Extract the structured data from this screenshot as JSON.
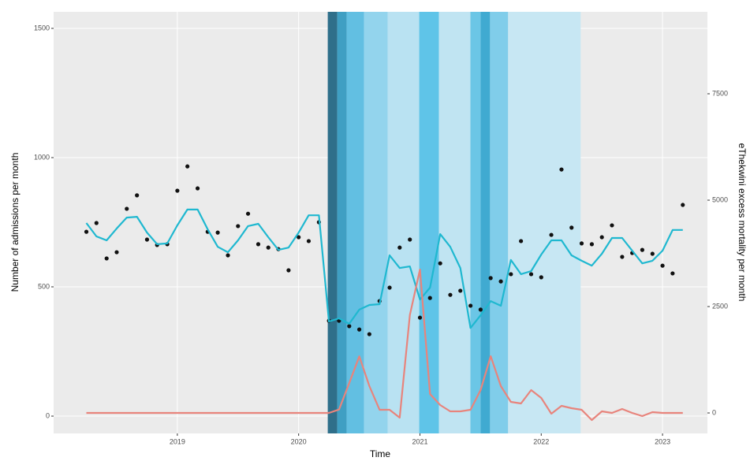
{
  "chart_data": {
    "type": "line",
    "x_label": "Time",
    "y_label": "Number of admissions per month",
    "y2_label": "eThekwini excess mortality per month",
    "xlim": [
      2017.98,
      2023.37
    ],
    "xticks": [
      2019,
      2020,
      2021,
      2022,
      2023
    ],
    "ylim": [
      -67,
      1564
    ],
    "yticks": [
      0,
      500,
      1000,
      1500
    ],
    "y2lim": [
      -481,
      9426
    ],
    "y2ticks": [
      0,
      2500,
      5000,
      7500
    ],
    "grid": true,
    "background": "#ebebeb",
    "bands": [
      {
        "xmin": 2020.24,
        "xmax": 2020.318,
        "color": "#2f6f8a"
      },
      {
        "xmin": 2020.318,
        "xmax": 2020.396,
        "color": "#3f9fc3"
      },
      {
        "xmin": 2020.396,
        "xmax": 2020.539,
        "color": "#62bfe2"
      },
      {
        "xmin": 2020.539,
        "xmax": 2020.734,
        "color": "#93d4ed"
      },
      {
        "xmin": 2020.734,
        "xmax": 2020.994,
        "color": "#b9e2f2"
      },
      {
        "xmin": 2020.994,
        "xmax": 2021.156,
        "color": "#5fc4e8"
      },
      {
        "xmin": 2021.156,
        "xmax": 2021.416,
        "color": "#c0e4f2"
      },
      {
        "xmin": 2021.416,
        "xmax": 2021.5,
        "color": "#6bc6e6"
      },
      {
        "xmin": 2021.5,
        "xmax": 2021.578,
        "color": "#40aad1"
      },
      {
        "xmin": 2021.578,
        "xmax": 2021.727,
        "color": "#80cdea"
      },
      {
        "xmin": 2021.727,
        "xmax": 2022.325,
        "color": "#c7e7f3"
      }
    ],
    "x": [
      2018.25,
      2018.333,
      2018.417,
      2018.5,
      2018.583,
      2018.667,
      2018.75,
      2018.833,
      2018.917,
      2019.0,
      2019.083,
      2019.167,
      2019.25,
      2019.333,
      2019.417,
      2019.5,
      2019.583,
      2019.667,
      2019.75,
      2019.833,
      2019.917,
      2020.0,
      2020.083,
      2020.167,
      2020.25,
      2020.333,
      2020.417,
      2020.5,
      2020.583,
      2020.667,
      2020.75,
      2020.833,
      2020.917,
      2021.0,
      2021.083,
      2021.167,
      2021.25,
      2021.333,
      2021.417,
      2021.5,
      2021.583,
      2021.667,
      2021.75,
      2021.833,
      2021.917,
      2022.0,
      2022.083,
      2022.167,
      2022.25,
      2022.333,
      2022.417,
      2022.5,
      2022.583,
      2022.667,
      2022.75,
      2022.833,
      2022.917,
      2023.0,
      2023.083,
      2023.167
    ],
    "series": [
      {
        "style": "points",
        "color": "#111111",
        "values": [
          713,
          747,
          610,
          634,
          802,
          854,
          683,
          662,
          665,
          872,
          966,
          881,
          713,
          710,
          622,
          735,
          783,
          665,
          652,
          646,
          564,
          692,
          677,
          750,
          369,
          369,
          348,
          335,
          317,
          445,
          497,
          652,
          683,
          381,
          457,
          591,
          469,
          485,
          427,
          412,
          534,
          521,
          549,
          677,
          549,
          537,
          701,
          954,
          729,
          668,
          665,
          692,
          738,
          616,
          631,
          643,
          628,
          582,
          552,
          817
        ]
      },
      {
        "style": "line",
        "color": "#1fb8d0",
        "values": [
          747,
          695,
          680,
          726,
          768,
          771,
          710,
          665,
          668,
          738,
          799,
          799,
          723,
          655,
          634,
          680,
          735,
          744,
          692,
          643,
          652,
          710,
          777,
          777,
          366,
          378,
          357,
          412,
          430,
          433,
          622,
          573,
          579,
          451,
          497,
          704,
          655,
          573,
          341,
          390,
          445,
          427,
          604,
          549,
          561,
          625,
          680,
          680,
          622,
          601,
          582,
          628,
          689,
          689,
          640,
          591,
          601,
          640,
          720,
          720
        ]
      },
      {
        "style": "line",
        "axis": "y2",
        "color": "#e8847c",
        "values": [
          0,
          0,
          0,
          0,
          0,
          0,
          0,
          0,
          0,
          0,
          0,
          0,
          0,
          0,
          0,
          0,
          0,
          0,
          0,
          0,
          0,
          0,
          0,
          0,
          0,
          80,
          700,
          1330,
          630,
          74,
          74,
          -110,
          2300,
          3370,
          444,
          185,
          37,
          37,
          74,
          537,
          1333,
          630,
          260,
          222,
          537,
          352,
          -18,
          167,
          111,
          74,
          -167,
          37,
          0,
          93,
          0,
          -74,
          19,
          0,
          0,
          0
        ]
      }
    ]
  }
}
